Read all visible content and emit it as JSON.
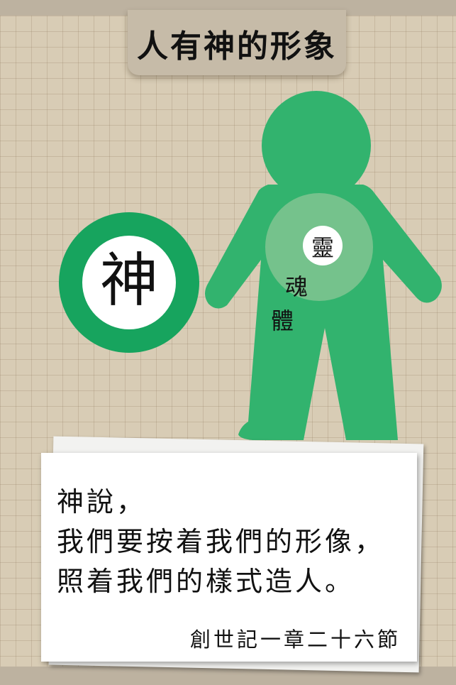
{
  "header": {
    "title": "人有神的形象"
  },
  "diagram": {
    "god_label": "神",
    "spirit_label": "靈",
    "soul_label": "魂",
    "body_label": "體"
  },
  "quote": {
    "line1": "神說，",
    "line2": "我們要按着我們的形像，",
    "line3": "照着我們的樣式造人。",
    "reference": "創世記一章二十六節"
  },
  "colors": {
    "background": "#d8ccb5",
    "figure_green": "#32b36e",
    "god_ring": "#17a45e",
    "inner_circle": "#7cc38f"
  }
}
